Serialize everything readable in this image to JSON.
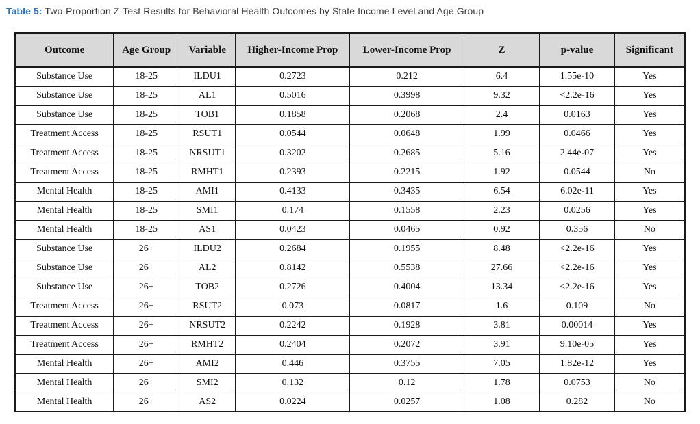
{
  "caption": {
    "label": "Table 5:",
    "text": "Two-Proportion Z-Test Results for Behavioral Health Outcomes by State Income Level and Age Group"
  },
  "colors": {
    "caption_accent": "#2e74b5",
    "header_background": "#d9d9d9",
    "table_border": "#1a1a1a",
    "body_text": "#111111"
  },
  "chart_data": {
    "type": "table",
    "title": "Two-Proportion Z-Test Results for Behavioral Health Outcomes by State Income Level and Age Group",
    "columns": [
      "Outcome",
      "Age Group",
      "Variable",
      "Higher-Income Prop",
      "Lower-Income Prop",
      "Z",
      "p-value",
      "Significant"
    ],
    "col_widths_pct": [
      14.7,
      9.8,
      8.4,
      17.1,
      17.0,
      11.3,
      11.2,
      10.5
    ],
    "rows": [
      [
        "Substance Use",
        "18-25",
        "ILDU1",
        "0.2723",
        "0.212",
        "6.4",
        "1.55e-10",
        "Yes"
      ],
      [
        "Substance Use",
        "18-25",
        "AL1",
        "0.5016",
        "0.3998",
        "9.32",
        "<2.2e-16",
        "Yes"
      ],
      [
        "Substance Use",
        "18-25",
        "TOB1",
        "0.1858",
        "0.2068",
        "2.4",
        "0.0163",
        "Yes"
      ],
      [
        "Treatment Access",
        "18-25",
        "RSUT1",
        "0.0544",
        "0.0648",
        "1.99",
        "0.0466",
        "Yes"
      ],
      [
        "Treatment Access",
        "18-25",
        "NRSUT1",
        "0.3202",
        "0.2685",
        "5.16",
        "2.44e-07",
        "Yes"
      ],
      [
        "Treatment Access",
        "18-25",
        "RMHT1",
        "0.2393",
        "0.2215",
        "1.92",
        "0.0544",
        "No"
      ],
      [
        "Mental Health",
        "18-25",
        "AMI1",
        "0.4133",
        "0.3435",
        "6.54",
        "6.02e-11",
        "Yes"
      ],
      [
        "Mental Health",
        "18-25",
        "SMI1",
        "0.174",
        "0.1558",
        "2.23",
        "0.0256",
        "Yes"
      ],
      [
        "Mental Health",
        "18-25",
        "AS1",
        "0.0423",
        "0.0465",
        "0.92",
        "0.356",
        "No"
      ],
      [
        "Substance Use",
        "26+",
        "ILDU2",
        "0.2684",
        "0.1955",
        "8.48",
        "<2.2e-16",
        "Yes"
      ],
      [
        "Substance Use",
        "26+",
        "AL2",
        "0.8142",
        "0.5538",
        "27.66",
        "<2.2e-16",
        "Yes"
      ],
      [
        "Substance Use",
        "26+",
        "TOB2",
        "0.2726",
        "0.4004",
        "13.34",
        "<2.2e-16",
        "Yes"
      ],
      [
        "Treatment Access",
        "26+",
        "RSUT2",
        "0.073",
        "0.0817",
        "1.6",
        "0.109",
        "No"
      ],
      [
        "Treatment Access",
        "26+",
        "NRSUT2",
        "0.2242",
        "0.1928",
        "3.81",
        "0.00014",
        "Yes"
      ],
      [
        "Treatment Access",
        "26+",
        "RMHT2",
        "0.2404",
        "0.2072",
        "3.91",
        "9.10e-05",
        "Yes"
      ],
      [
        "Mental Health",
        "26+",
        "AMI2",
        "0.446",
        "0.3755",
        "7.05",
        "1.82e-12",
        "Yes"
      ],
      [
        "Mental Health",
        "26+",
        "SMI2",
        "0.132",
        "0.12",
        "1.78",
        "0.0753",
        "No"
      ],
      [
        "Mental Health",
        "26+",
        "AS2",
        "0.0224",
        "0.0257",
        "1.08",
        "0.282",
        "No"
      ]
    ]
  }
}
